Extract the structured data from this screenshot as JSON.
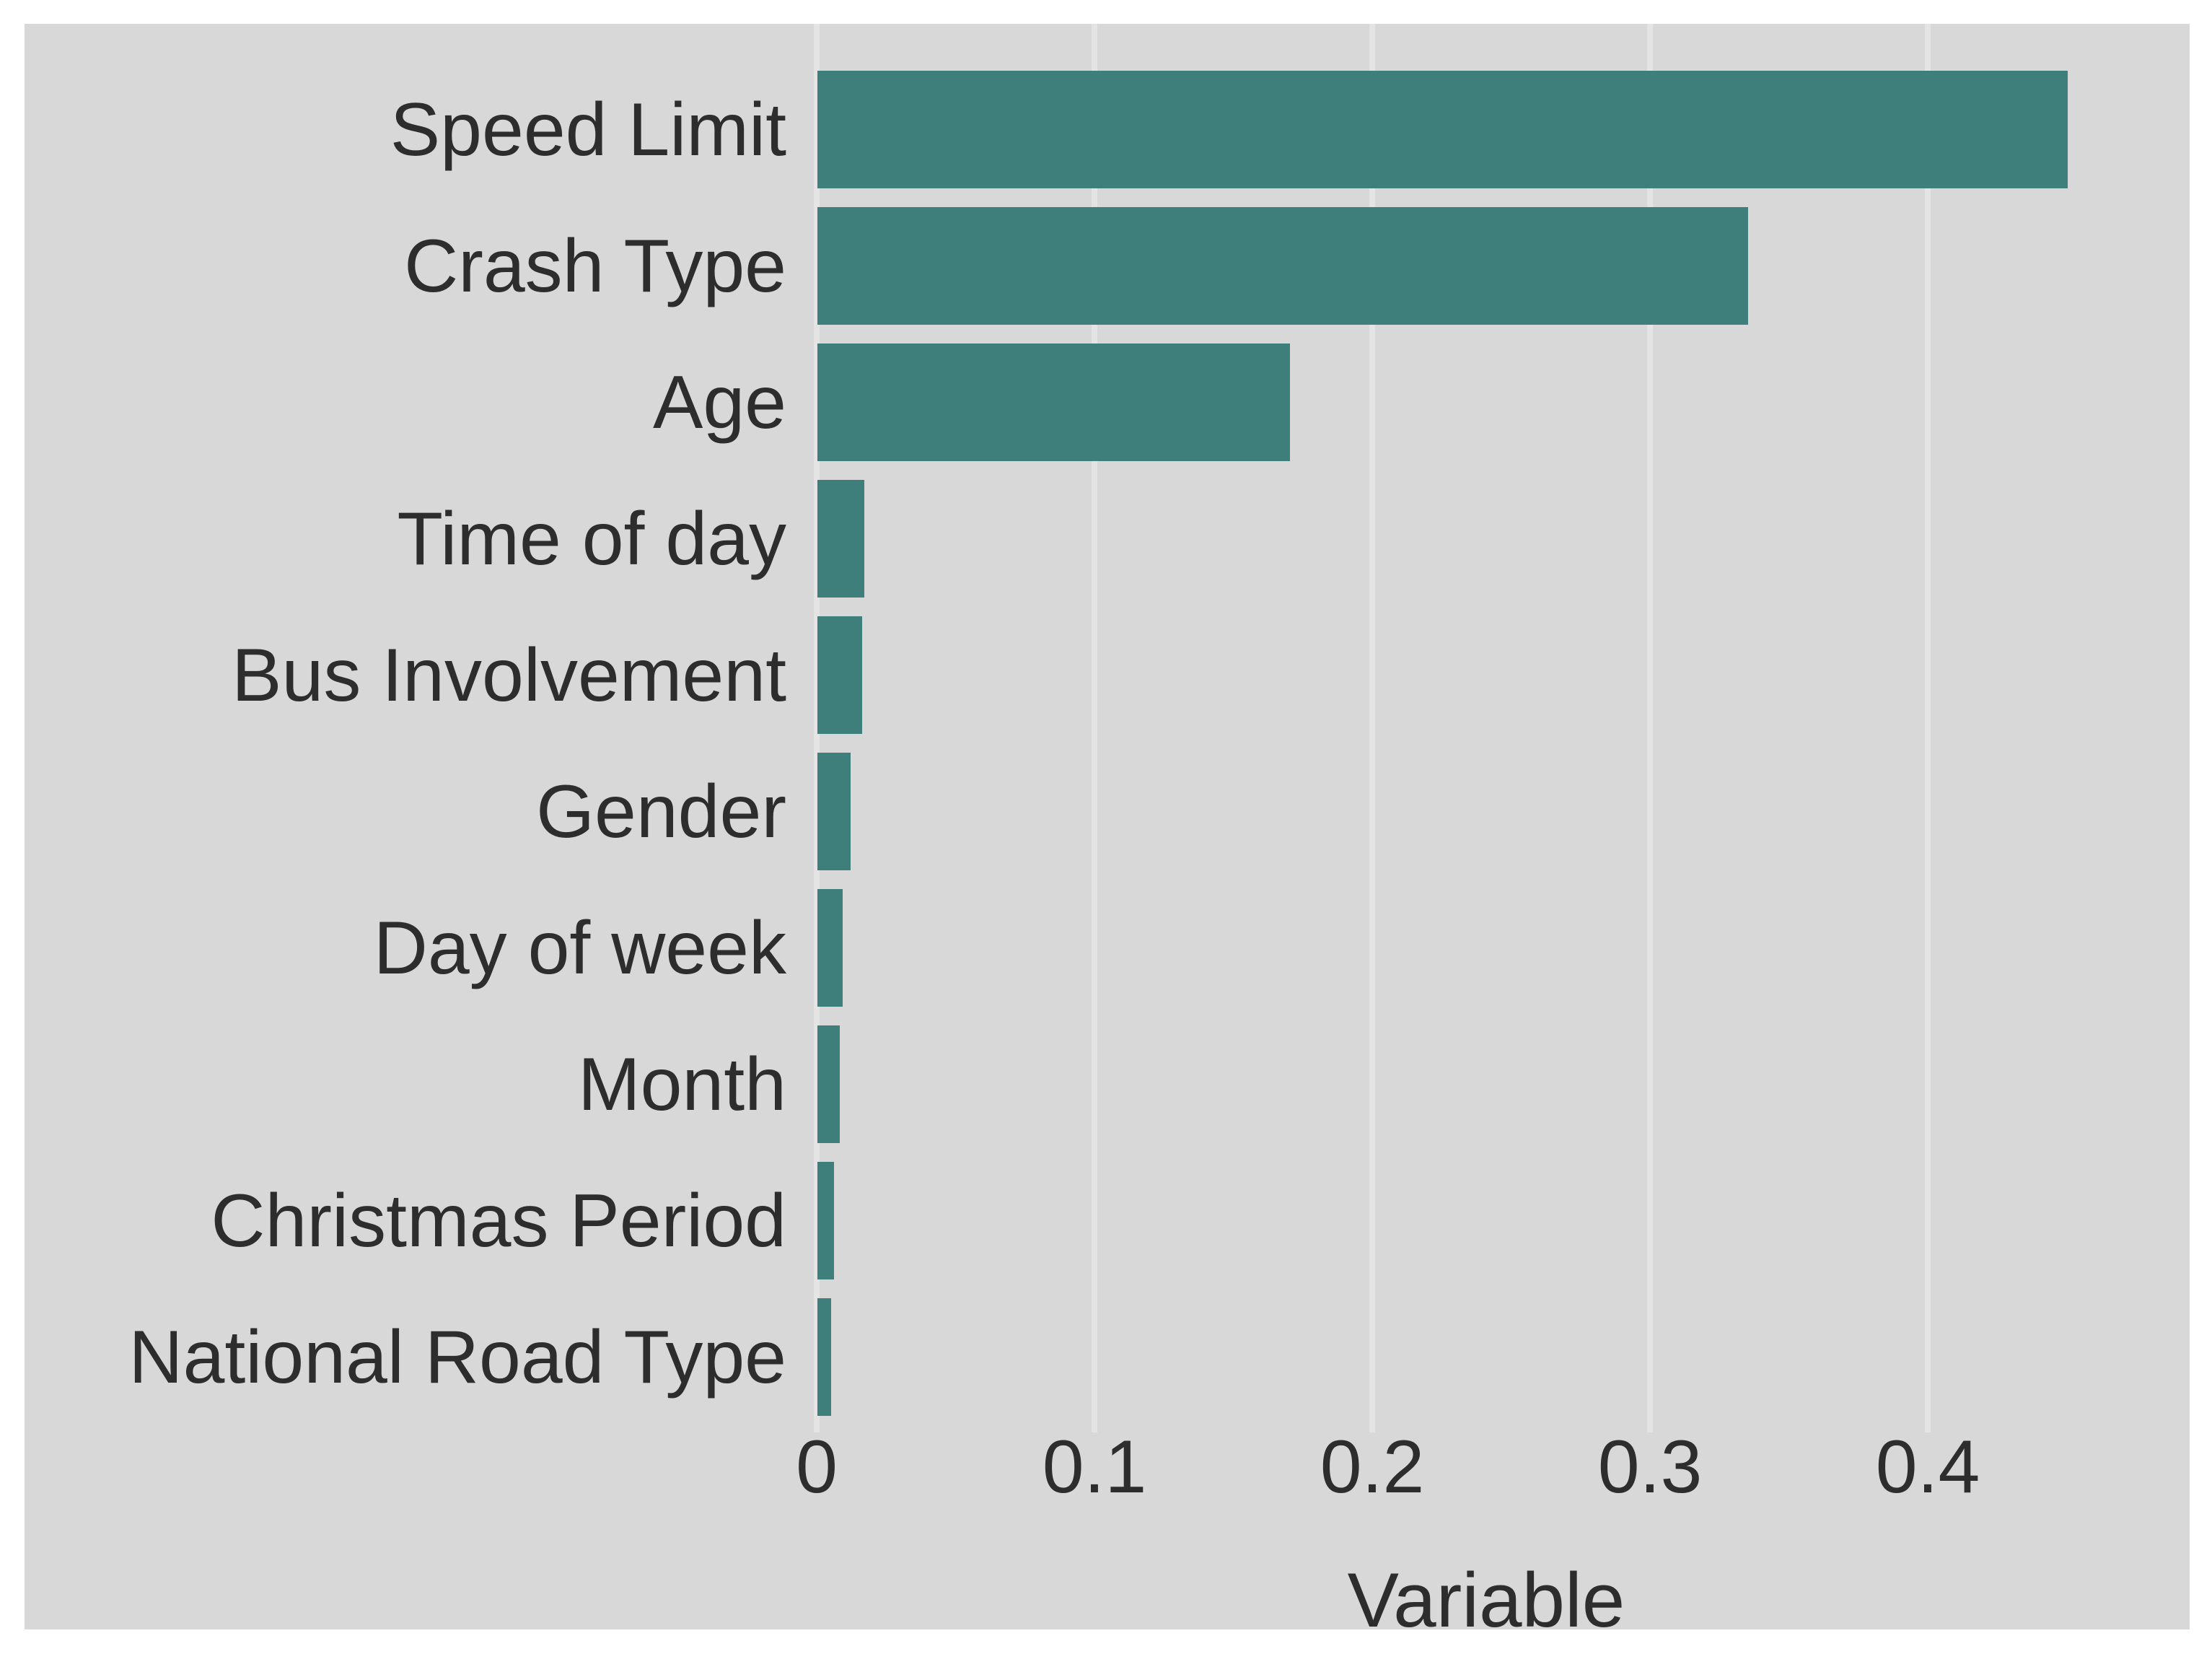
{
  "figure": {
    "page_background": "#FFFFFF",
    "panel_background": "#D8D8D8",
    "text_color": "#2D2D2D"
  },
  "chart_data": {
    "type": "bar",
    "orientation": "horizontal",
    "title": "",
    "xlabel": "Variable",
    "ylabel": "",
    "categories": [
      "Speed Limit",
      "Crash Type",
      "Age",
      "Time of day",
      "Bus Involvement",
      "Gender",
      "Day of week",
      "Month",
      "Christmas Period",
      "National Road Type"
    ],
    "values": [
      0.45,
      0.335,
      0.17,
      0.017,
      0.016,
      0.012,
      0.009,
      0.008,
      0.006,
      0.005
    ],
    "xticks_values": [
      0,
      0.1,
      0.2,
      0.3,
      0.4
    ],
    "xticks_labels": [
      "0",
      "0.1",
      "0.2",
      "0.3",
      "0.4"
    ],
    "xlim": [
      0,
      0.49
    ],
    "grid": "vertical gridlines only",
    "legend": "none",
    "bar_color": "#3F7F7B",
    "gridline_color": "#E4E4E4"
  }
}
